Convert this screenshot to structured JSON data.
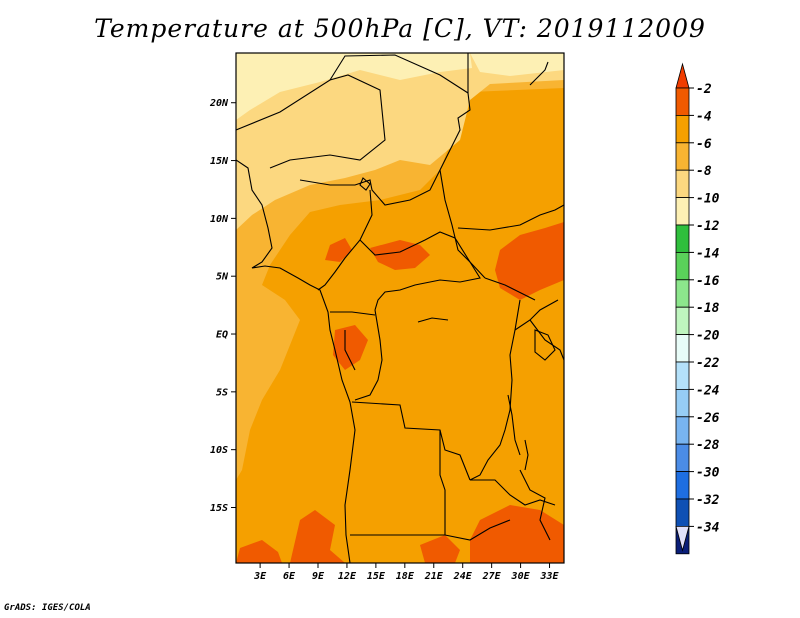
{
  "title": "Temperature at 500hPa [C], VT: 2019112009",
  "credit": "GrADS: IGES/COLA",
  "lat_labels": [
    {
      "label": "20N",
      "lat": 20
    },
    {
      "label": "15N",
      "lat": 15
    },
    {
      "label": "10N",
      "lat": 10
    },
    {
      "label": "5N",
      "lat": 5
    },
    {
      "label": "EQ",
      "lat": 0
    },
    {
      "label": "5S",
      "lat": -5
    },
    {
      "label": "10S",
      "lat": -10
    },
    {
      "label": "15S",
      "lat": -15
    }
  ],
  "lon_labels": [
    {
      "label": "3E",
      "lon": 3
    },
    {
      "label": "6E",
      "lon": 6
    },
    {
      "label": "9E",
      "lon": 9
    },
    {
      "label": "12E",
      "lon": 12
    },
    {
      "label": "15E",
      "lon": 15
    },
    {
      "label": "18E",
      "lon": 18
    },
    {
      "label": "21E",
      "lon": 21
    },
    {
      "label": "24E",
      "lon": 24
    },
    {
      "label": "27E",
      "lon": 27
    },
    {
      "label": "30E",
      "lon": 30
    },
    {
      "label": "33E",
      "lon": 33
    }
  ],
  "colorbar": {
    "bins": [
      {
        "label": "-2",
        "color": "#f05a00"
      },
      {
        "label": "-4",
        "color": "#f5a000"
      },
      {
        "label": "-6",
        "color": "#f8b432"
      },
      {
        "label": "-8",
        "color": "#fcd880"
      },
      {
        "label": "-10",
        "color": "#fdf0b4"
      },
      {
        "label": "-12",
        "color": "#2fbf3c"
      },
      {
        "label": "-14",
        "color": "#5ad25a"
      },
      {
        "label": "-16",
        "color": "#8ce68c"
      },
      {
        "label": "-18",
        "color": "#bff5bf"
      },
      {
        "label": "-20",
        "color": "#e8fcf8"
      },
      {
        "label": "-22",
        "color": "#b4e1fa"
      },
      {
        "label": "-24",
        "color": "#96cdf5"
      },
      {
        "label": "-26",
        "color": "#78b4f0"
      },
      {
        "label": "-28",
        "color": "#4b8ce6"
      },
      {
        "label": "-30",
        "color": "#1e6ee1"
      },
      {
        "label": "-32",
        "color": "#0f50b4"
      },
      {
        "label": "-34",
        "color": "#0a1e78"
      }
    ],
    "over_color": "#f03c00",
    "under_color": "#e1e1fa"
  },
  "field_colors": {
    "warm_m4_m2": "#f05a00",
    "m6_m4": "#f5a000",
    "m8_m6": "#f8b432",
    "m10_m8": "#fcd880",
    "m12_m10": "#fdf0b4"
  }
}
